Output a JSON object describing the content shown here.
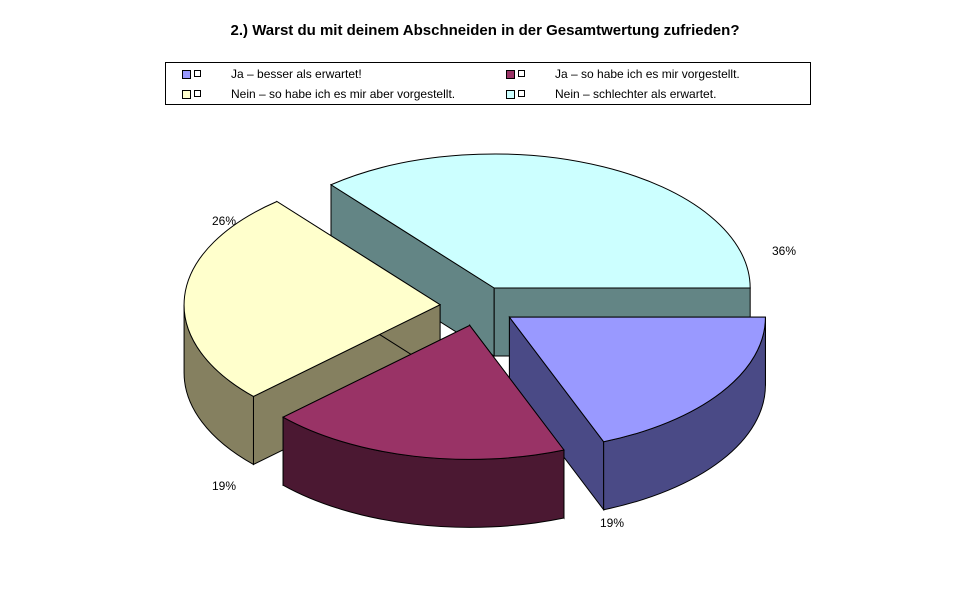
{
  "chart_data": {
    "type": "pie",
    "title": "2.) Warst du mit deinem Abschneiden in der Gesamtwertung zufrieden?",
    "three_d": true,
    "exploded": true,
    "legend_position": "top",
    "slices": [
      {
        "label": "Ja – besser als erwartet!",
        "value": 19,
        "value_label": "19%",
        "color": "#9999ff",
        "side_color": "#4a4a86"
      },
      {
        "label": "Ja – so habe ich es mir vorgestellt.",
        "value": 19,
        "value_label": "19%",
        "color": "#993366",
        "side_color": "#4b1832"
      },
      {
        "label": "Nein – so habe ich es mir aber vorgestellt.",
        "value": 26,
        "value_label": "26%",
        "color": "#ffffcc",
        "side_color": "#858060"
      },
      {
        "label": "Nein – schlechter als erwartet.",
        "value": 36,
        "value_label": "36%",
        "color": "#ccffff",
        "side_color": "#638585"
      }
    ]
  }
}
